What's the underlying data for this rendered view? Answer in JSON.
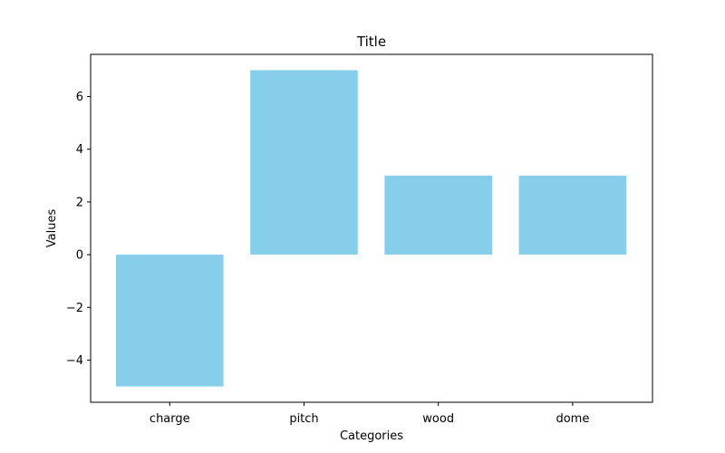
{
  "chart_data": {
    "type": "bar",
    "title": "Title",
    "xlabel": "Categories",
    "ylabel": "Values",
    "categories": [
      "charge",
      "pitch",
      "wood",
      "dome"
    ],
    "values": [
      -5,
      7,
      3,
      3
    ],
    "ylim": [
      -5.6,
      7.6
    ],
    "yticks": [
      -4,
      -2,
      0,
      2,
      4,
      6
    ],
    "ytick_labels": [
      "−4",
      "−2",
      "0",
      "2",
      "4",
      "6"
    ],
    "bar_color": "#87ceeb",
    "grid": false
  }
}
